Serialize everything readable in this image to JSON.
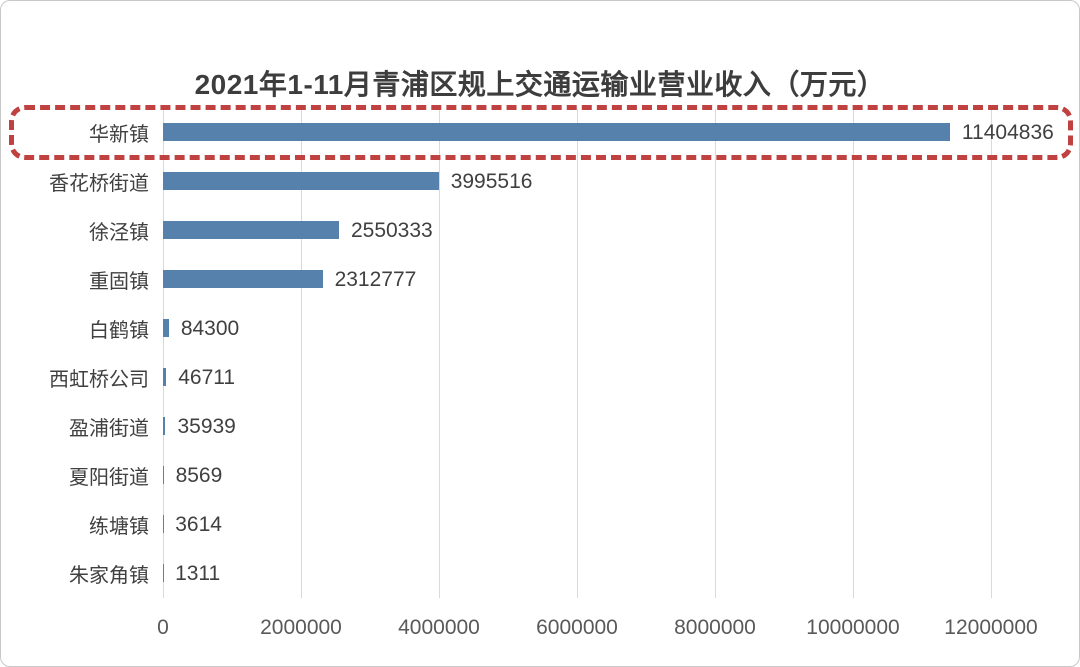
{
  "frame": {
    "border_color": "#c9c9c9",
    "background": "#ffffff"
  },
  "chart_data": {
    "type": "bar",
    "orientation": "horizontal",
    "title": "2021年1-11月青浦区规上交通运输业营业收入（万元）",
    "categories": [
      "华新镇",
      "香花桥街道",
      "徐泾镇",
      "重固镇",
      "白鹤镇",
      "西虹桥公司",
      "盈浦街道",
      "夏阳街道",
      "练塘镇",
      "朱家角镇"
    ],
    "values": [
      11404836,
      3995516,
      2550333,
      2312777,
      84300,
      46711,
      35939,
      8569,
      3614,
      1311
    ],
    "value_labels": [
      "11404836",
      "3995516",
      "2550333",
      "2312777",
      "84300",
      "46711",
      "35939",
      "8569",
      "3614",
      "1311"
    ],
    "xlabel": "",
    "ylabel": "",
    "xlim": [
      0,
      12000000
    ],
    "x_ticks": [
      0,
      2000000,
      4000000,
      6000000,
      8000000,
      10000000,
      12000000
    ],
    "x_tick_labels": [
      "0",
      "2000000",
      "4000000",
      "6000000",
      "8000000",
      "10000000",
      "12000000"
    ],
    "grid": "vertical-gridlines-only",
    "legend": "none",
    "bar_color": "#5581ac",
    "gridline_color": "#d9d9d9",
    "title_color": "#3d3d3d",
    "label_color": "#404040",
    "tick_color": "#595959",
    "annotation": {
      "type": "highlight-box",
      "target_category": "华新镇",
      "border_color": "#bf4140",
      "border_style": "dashed",
      "note": "red dashed rounded rectangle around the top bar row"
    }
  }
}
